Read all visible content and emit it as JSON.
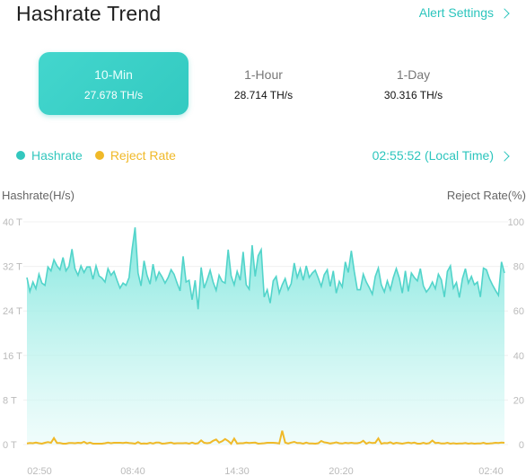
{
  "header": {
    "title": "Hashrate Trend",
    "alert_settings": "Alert Settings"
  },
  "tabs": [
    {
      "label": "10-Min",
      "value": "27.678 TH/s",
      "active": true
    },
    {
      "label": "1-Hour",
      "value": "28.714 TH/s",
      "active": false
    },
    {
      "label": "1-Day",
      "value": "30.316 TH/s",
      "active": false
    }
  ],
  "legend": {
    "hashrate": "Hashrate",
    "hashrate_color": "#33c7be",
    "reject": "Reject Rate",
    "reject_color": "#f0b928"
  },
  "time_display": "02:55:52 (Local Time)",
  "chart_data": {
    "type": "area",
    "y_left_label": "Hashrate(H/s)",
    "y_right_label": "Reject Rate(%)",
    "y_left_ticks": [
      "0 T",
      "8 T",
      "16 T",
      "24 T",
      "32 T",
      "40 T"
    ],
    "y_right_ticks": [
      "0",
      "20",
      "40",
      "60",
      "80",
      "100"
    ],
    "ylim_left": [
      0,
      40
    ],
    "ylim_right": [
      0,
      100
    ],
    "x_ticks": [
      "02:50",
      "08:40",
      "14:30",
      "20:20",
      "02:40"
    ],
    "grid": true,
    "series": [
      {
        "name": "Hashrate",
        "axis": "left",
        "values": [
          30.0,
          27.5,
          29.2,
          28.0,
          30.6,
          29.0,
          28.6,
          31.9,
          31.2,
          33.2,
          32.1,
          31.4,
          33.6,
          31.2,
          32.0,
          35.1,
          31.6,
          30.4,
          32.1,
          30.9,
          31.9,
          31.9,
          29.7,
          32.1,
          30.3,
          29.9,
          29.2,
          31.6,
          30.4,
          31.1,
          29.5,
          28.1,
          29.0,
          28.6,
          30.0,
          35.0,
          39.0,
          30.8,
          28.5,
          33.0,
          30.4,
          28.8,
          32.4,
          29.6,
          31.0,
          30.1,
          29.0,
          30.0,
          31.4,
          30.6,
          29.0,
          27.6,
          33.8,
          29.2,
          29.5,
          26.0,
          29.5,
          24.3,
          31.8,
          28.1,
          29.6,
          31.3,
          29.2,
          27.7,
          30.4,
          29.3,
          29.0,
          35.0,
          30.3,
          28.7,
          31.1,
          29.5,
          34.6,
          28.7,
          27.9,
          35.8,
          30.2,
          33.9,
          35.0,
          26.5,
          27.8,
          25.4,
          29.4,
          30.2,
          27.2,
          28.7,
          29.8,
          27.8,
          28.9,
          32.6,
          30.0,
          31.6,
          29.5,
          32.1,
          30.0,
          30.8,
          31.3,
          29.9,
          28.4,
          30.5,
          31.4,
          28.4,
          31.2,
          27.2,
          29.3,
          28.3,
          32.8,
          30.9,
          34.8,
          31.1,
          27.8,
          27.8,
          30.6,
          29.2,
          28.2,
          27.0,
          30.2,
          31.7,
          28.7,
          27.4,
          29.4,
          27.8,
          30.0,
          31.6,
          29.9,
          27.2,
          31.2,
          27.5,
          30.8,
          30.0,
          29.4,
          31.6,
          28.5,
          27.4,
          28.1,
          29.2,
          28.0,
          30.6,
          29.6,
          26.5,
          31.1,
          32.1,
          28.1,
          29.1,
          26.4,
          29.8,
          31.6,
          29.0,
          30.2,
          28.7,
          29.2,
          26.5,
          31.7,
          31.4,
          29.8,
          28.7,
          27.7,
          26.8,
          32.8,
          30.8
        ]
      },
      {
        "name": "Reject Rate",
        "axis": "right",
        "values": [
          0.5,
          0.7,
          0.6,
          0.9,
          0.6,
          0.4,
          0.8,
          1.1,
          0.8,
          2.9,
          0.7,
          0.7,
          0.4,
          0.4,
          0.7,
          0.7,
          0.6,
          0.8,
          0.7,
          1.2,
          0.5,
          0.9,
          0.4,
          0.4,
          0.4,
          0.4,
          0.6,
          0.9,
          0.6,
          0.8,
          0.8,
          0.8,
          0.7,
          0.9,
          0.7,
          0.6,
          0.4,
          1.1,
          0.4,
          0.5,
          0.4,
          0.8,
          0.5,
          0.9,
          0.9,
          0.4,
          0.5,
          0.7,
          0.9,
          0.5,
          0.6,
          0.6,
          0.6,
          0.7,
          0.4,
          0.9,
          0.4,
          0.6,
          1.9,
          0.8,
          0.6,
          0.8,
          1.7,
          2.3,
          0.9,
          1.5,
          2.5,
          1.6,
          0.4,
          2.7,
          0.5,
          0.6,
          0.6,
          0.9,
          0.7,
          0.8,
          0.9,
          0.4,
          0.5,
          0.6,
          0.8,
          0.8,
          0.8,
          0.7,
          0.5,
          6.2,
          0.9,
          0.5,
          0.9,
          1.2,
          0.7,
          0.7,
          0.4,
          0.9,
          0.5,
          0.5,
          0.4,
          0.6,
          1.6,
          1.0,
          0.8,
          0.5,
          0.7,
          1.0,
          0.6,
          0.5,
          0.8,
          0.6,
          0.8,
          0.6,
          0.6,
          0.9,
          1.7,
          0.4,
          1.0,
          0.7,
          0.8,
          2.8,
          0.4,
          0.7,
          0.6,
          1.0,
          0.4,
          0.8,
          0.6,
          0.4,
          0.7,
          0.9,
          0.6,
          0.9,
          0.4,
          0.4,
          0.8,
          0.4,
          0.7,
          1.8,
          0.7,
          0.8,
          0.5,
          0.5,
          0.8,
          0.4,
          0.6,
          0.4,
          0.5,
          0.5,
          0.7,
          0.4,
          0.6,
          0.4,
          0.5,
          0.5,
          0.8,
          0.4,
          0.5,
          0.6,
          0.8,
          0.7,
          0.9,
          0.8
        ]
      }
    ]
  }
}
